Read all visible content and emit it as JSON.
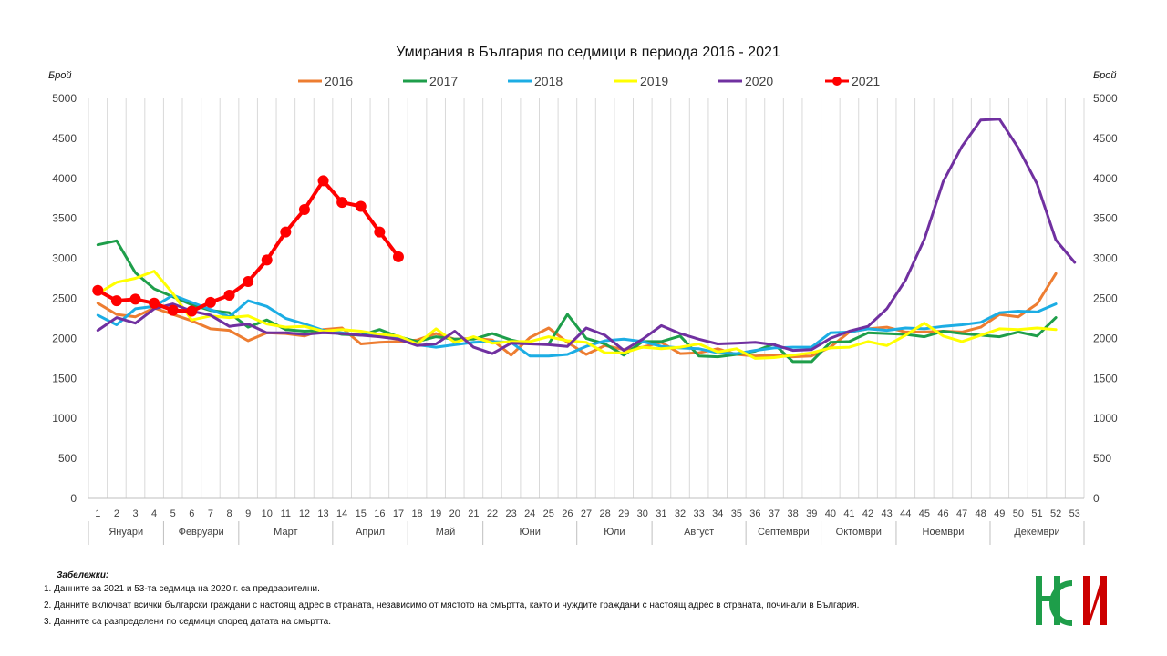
{
  "colors": {
    "2016": "#ED7D31",
    "2017": "#1E9E4A",
    "2018": "#1CADE4",
    "2019": "#FFFF00",
    "2020": "#7030A0",
    "2021": "#FF0000"
  },
  "chart_data": {
    "type": "line",
    "title": "Умирания в България по седмици в периода 2016 - 2021",
    "ylabel_left": "Брой",
    "ylabel_right": "Брой",
    "ylim": [
      0,
      5000
    ],
    "yticks": [
      "0",
      "500",
      "1000",
      "1500",
      "2000",
      "2500",
      "3000",
      "3500",
      "4000",
      "4500",
      "5000"
    ],
    "x": [
      "1",
      "2",
      "3",
      "4",
      "5",
      "6",
      "7",
      "8",
      "9",
      "10",
      "11",
      "12",
      "13",
      "14",
      "15",
      "16",
      "17",
      "18",
      "19",
      "20",
      "21",
      "22",
      "23",
      "24",
      "25",
      "26",
      "27",
      "28",
      "29",
      "30",
      "31",
      "32",
      "33",
      "34",
      "35",
      "36",
      "37",
      "38",
      "39",
      "40",
      "41",
      "42",
      "43",
      "44",
      "45",
      "46",
      "47",
      "48",
      "49",
      "50",
      "51",
      "52",
      "53"
    ],
    "months": [
      {
        "label": "Януари",
        "from": 1,
        "to": 4
      },
      {
        "label": "Февруари",
        "from": 5,
        "to": 8
      },
      {
        "label": "Март",
        "from": 9,
        "to": 13
      },
      {
        "label": "Април",
        "from": 14,
        "to": 17
      },
      {
        "label": "Май",
        "from": 18,
        "to": 21
      },
      {
        "label": "Юни",
        "from": 22,
        "to": 26
      },
      {
        "label": "Юли",
        "from": 27,
        "to": 30
      },
      {
        "label": "Август",
        "from": 31,
        "to": 35
      },
      {
        "label": "Септември",
        "from": 36,
        "to": 39
      },
      {
        "label": "Октомври",
        "from": 40,
        "to": 43
      },
      {
        "label": "Ноември",
        "from": 44,
        "to": 48
      },
      {
        "label": "Декември",
        "from": 49,
        "to": 53
      }
    ],
    "legend_position": "top",
    "grid": "vertical",
    "series": [
      {
        "name": "2016",
        "values": [
          2440,
          2300,
          2270,
          2380,
          2300,
          2220,
          2120,
          2100,
          1970,
          2070,
          2060,
          2030,
          2110,
          2130,
          1930,
          1950,
          1960,
          1980,
          2060,
          1990,
          2000,
          1980,
          1790,
          2010,
          2130,
          1950,
          1800,
          1910,
          1860,
          1890,
          1950,
          1810,
          1820,
          1870,
          1800,
          1780,
          1790,
          1770,
          1780,
          1890,
          2080,
          2120,
          2140,
          2080,
          2080,
          2090,
          2080,
          2140,
          2300,
          2270,
          2430,
          2810,
          null
        ]
      },
      {
        "name": "2017",
        "values": [
          3170,
          3220,
          2820,
          2620,
          2520,
          2420,
          2350,
          2320,
          2140,
          2230,
          2110,
          2090,
          2100,
          2050,
          2040,
          2110,
          2020,
          1960,
          2020,
          1990,
          1990,
          2060,
          1980,
          1930,
          1930,
          2300,
          2000,
          1930,
          1790,
          1960,
          1960,
          2030,
          1780,
          1770,
          1800,
          1840,
          1930,
          1710,
          1710,
          1950,
          1960,
          2070,
          2060,
          2050,
          2020,
          2090,
          2060,
          2040,
          2020,
          2080,
          2030,
          2260,
          null
        ]
      },
      {
        "name": "2018",
        "values": [
          2290,
          2170,
          2370,
          2400,
          2540,
          2450,
          2360,
          2270,
          2470,
          2400,
          2250,
          2180,
          2100,
          2070,
          2040,
          2040,
          2000,
          1920,
          1890,
          1920,
          1950,
          1960,
          1950,
          1780,
          1780,
          1800,
          1900,
          1970,
          1990,
          1960,
          1900,
          1880,
          1870,
          1820,
          1810,
          1850,
          1880,
          1890,
          1890,
          2070,
          2080,
          2120,
          2100,
          2130,
          2120,
          2150,
          2170,
          2200,
          2320,
          2340,
          2330,
          2430,
          null
        ]
      },
      {
        "name": "2019",
        "values": [
          2560,
          2700,
          2750,
          2840,
          2560,
          2230,
          2280,
          2260,
          2280,
          2180,
          2140,
          2150,
          2090,
          2110,
          2090,
          2050,
          2030,
          1930,
          2120,
          1950,
          2020,
          1940,
          1960,
          1960,
          2020,
          1970,
          1950,
          1820,
          1820,
          1890,
          1870,
          1890,
          1930,
          1830,
          1870,
          1750,
          1760,
          1790,
          1820,
          1880,
          1890,
          1960,
          1910,
          2040,
          2190,
          2030,
          1960,
          2040,
          2120,
          2110,
          2130,
          2110,
          null
        ]
      },
      {
        "name": "2020",
        "values": [
          2100,
          2260,
          2190,
          2370,
          2430,
          2340,
          2290,
          2150,
          2180,
          2070,
          2070,
          2050,
          2070,
          2060,
          2040,
          2020,
          1990,
          1910,
          1930,
          2090,
          1890,
          1810,
          1940,
          1930,
          1920,
          1900,
          2130,
          2040,
          1850,
          1990,
          2160,
          2060,
          1990,
          1930,
          1940,
          1950,
          1920,
          1850,
          1860,
          2000,
          2090,
          2150,
          2370,
          2730,
          3240,
          3960,
          4400,
          4730,
          4740,
          4380,
          3930,
          3230,
          2950
        ]
      },
      {
        "name": "2021",
        "values": [
          2600,
          2470,
          2490,
          2440,
          2350,
          2340,
          2450,
          2540,
          2710,
          2980,
          3330,
          3610,
          3970,
          3700,
          3650,
          3330,
          3020,
          null,
          null,
          null,
          null,
          null,
          null,
          null,
          null,
          null,
          null,
          null,
          null,
          null,
          null,
          null,
          null,
          null,
          null,
          null,
          null,
          null,
          null,
          null,
          null,
          null,
          null,
          null,
          null,
          null,
          null,
          null,
          null,
          null,
          null,
          null,
          null
        ]
      }
    ]
  },
  "notes": {
    "title": "Забележки:",
    "items": [
      "1. Данните за 2021 и 53-та седмица на 2020 г. са предварителни.",
      "2. Данните включват всички български граждани с настоящ адрес в страната, независимо от мястото на смъртта, както и чуждите граждани с настоящ адрес в страната, починали в България.",
      "3. Данните са разпределени по седмици според датата на смъртта."
    ]
  },
  "logo": {
    "text": "НСИ",
    "colors": [
      "#1E9E4A",
      "#CC0000"
    ]
  }
}
